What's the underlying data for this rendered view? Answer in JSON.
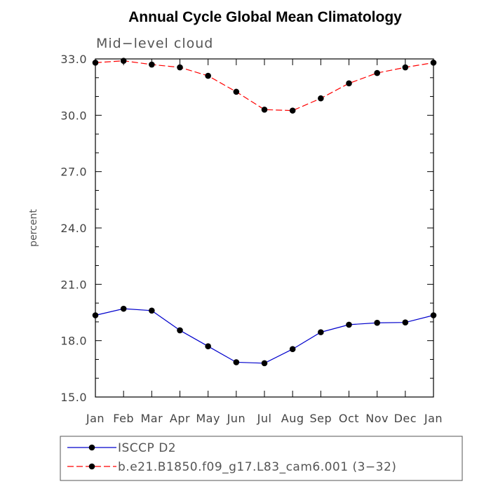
{
  "chart_data": {
    "type": "line",
    "title": "Annual Cycle Global Mean Climatology",
    "subtitle": "Mid−level cloud",
    "ylabel": "percent",
    "xlabel": "",
    "ylim": [
      15.0,
      33.0
    ],
    "yticks": [
      "15.0",
      "18.0",
      "21.0",
      "24.0",
      "27.0",
      "30.0",
      "33.0"
    ],
    "categories": [
      "Jan",
      "Feb",
      "Mar",
      "Apr",
      "May",
      "Jun",
      "Jul",
      "Aug",
      "Sep",
      "Oct",
      "Nov",
      "Dec",
      "Jan"
    ],
    "series": [
      {
        "name": "ISCCP D2",
        "color": "#0000cc",
        "dash": "solid",
        "values": [
          19.35,
          19.7,
          19.6,
          18.55,
          17.7,
          16.85,
          16.8,
          17.55,
          18.45,
          18.85,
          18.95,
          18.97,
          19.35
        ]
      },
      {
        "name": "b.e21.B1850.f09_g17.L83_cam6.001 (3−32)",
        "color": "#ff0000",
        "dash": "dashed",
        "values": [
          32.8,
          32.9,
          32.7,
          32.55,
          32.1,
          31.25,
          30.3,
          30.25,
          30.9,
          31.7,
          32.25,
          32.55,
          32.8
        ]
      }
    ],
    "legend_position": "bottom",
    "grid": false
  }
}
